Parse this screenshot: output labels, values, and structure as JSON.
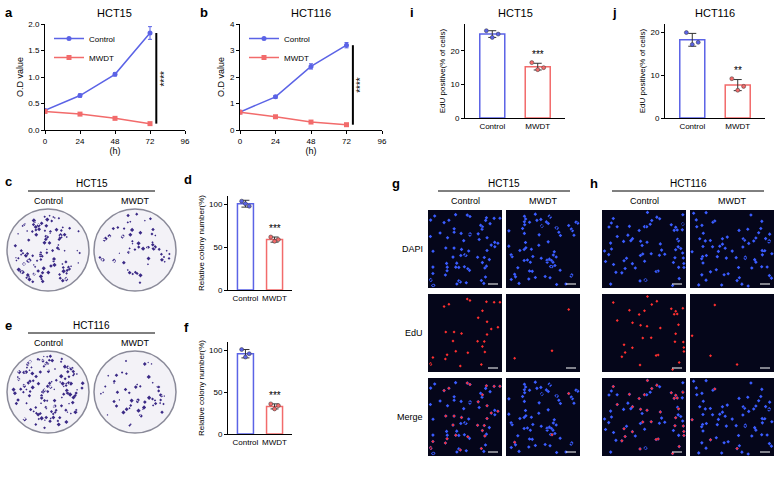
{
  "chart_data": [
    {
      "panel": "a",
      "type": "line",
      "title": "HCT15",
      "x_label": "(h)",
      "y_label": "O.D value",
      "x": [
        0,
        24,
        48,
        72
      ],
      "xlim": [
        0,
        96
      ],
      "xticks": [
        0,
        24,
        48,
        72,
        96
      ],
      "ylim": [
        0,
        2
      ],
      "yticks": [
        {
          "value": 0,
          "label": "0.0"
        },
        {
          "value": 0.5,
          "label": "0.5"
        },
        {
          "value": 1,
          "label": "1.0"
        },
        {
          "value": 1.5,
          "label": "1.5"
        },
        {
          "value": 2,
          "label": "2.0"
        }
      ],
      "legend": "upper left",
      "annotations": [
        "****"
      ],
      "series": [
        {
          "name": "Control",
          "color": "#5b63e6",
          "marker": "circle",
          "values": [
            0.37,
            0.65,
            1.05,
            1.83
          ],
          "error": [
            0.02,
            0.03,
            0.03,
            0.12
          ]
        },
        {
          "name": "MWDT",
          "color": "#f26b6b",
          "marker": "square",
          "values": [
            0.35,
            0.3,
            0.22,
            0.12
          ],
          "error": [
            0.02,
            0.02,
            0.02,
            0.02
          ]
        }
      ]
    },
    {
      "panel": "b",
      "type": "line",
      "title": "HCT116",
      "x_label": "(h)",
      "y_label": "O.D value",
      "x": [
        0,
        24,
        48,
        72
      ],
      "xlim": [
        0,
        96
      ],
      "xticks": [
        0,
        24,
        48,
        72,
        96
      ],
      "ylim": [
        0,
        4
      ],
      "yticks": [
        0,
        1,
        2,
        3,
        4
      ],
      "legend": "upper left",
      "annotations": [
        "****"
      ],
      "series": [
        {
          "name": "Control",
          "color": "#5b63e6",
          "marker": "circle",
          "values": [
            0.68,
            1.25,
            2.4,
            3.2
          ],
          "error": [
            0.03,
            0.05,
            0.1,
            0.1
          ]
        },
        {
          "name": "MWDT",
          "color": "#f26b6b",
          "marker": "square",
          "values": [
            0.67,
            0.5,
            0.3,
            0.2
          ],
          "error": [
            0.02,
            0.03,
            0.03,
            0.03
          ]
        }
      ]
    },
    {
      "panel": "i",
      "type": "bar",
      "title": "HCT15",
      "y_label": "EdU positive(% of cells)",
      "categories": [
        "Control",
        "MWDT"
      ],
      "values": [
        25,
        15.3
      ],
      "error": [
        1.0,
        1.0
      ],
      "points": [
        [
          26,
          24,
          25
        ],
        [
          16.5,
          14.4,
          15
        ]
      ],
      "colors": [
        "#5b63e6",
        "#f26b6b"
      ],
      "ylim": [
        0,
        28
      ],
      "yticks": [
        0,
        10,
        20
      ],
      "annotations": [
        "***"
      ]
    },
    {
      "panel": "j",
      "type": "bar",
      "title": "HCT116",
      "y_label": "EdU positive(% of cells)",
      "categories": [
        "Control",
        "MWDT"
      ],
      "values": [
        18.3,
        7.7
      ],
      "error": [
        1.5,
        1.3
      ],
      "points": [
        [
          20,
          17.2,
          17.7
        ],
        [
          9.2,
          6.5,
          7.4
        ]
      ],
      "colors": [
        "#5b63e6",
        "#f26b6b"
      ],
      "ylim": [
        0,
        22
      ],
      "yticks": [
        0,
        10,
        20
      ],
      "annotations": [
        "**"
      ]
    },
    {
      "panel": "c",
      "type": "image",
      "title": "HCT15",
      "columns": [
        "Control",
        "MWDT"
      ]
    },
    {
      "panel": "d",
      "type": "bar",
      "y_label": "Relative colony number(%)",
      "categories": [
        "Control",
        "MWDT"
      ],
      "values": [
        101,
        59
      ],
      "error": [
        4,
        3
      ],
      "points": [
        [
          104,
          101,
          98
        ],
        [
          62,
          57,
          59
        ]
      ],
      "colors": [
        "#5b63e6",
        "#f26b6b"
      ],
      "ylim": [
        0,
        110
      ],
      "yticks": [
        0,
        50,
        100
      ],
      "annotations": [
        "***"
      ]
    },
    {
      "panel": "e",
      "type": "image",
      "title": "HCT116",
      "columns": [
        "Control",
        "MWDT"
      ]
    },
    {
      "panel": "f",
      "type": "bar",
      "y_label": "Relative colony number(%)",
      "categories": [
        "Control",
        "MWDT"
      ],
      "values": [
        96,
        33
      ],
      "error": [
        5,
        3
      ],
      "points": [
        [
          101,
          92,
          96
        ],
        [
          36,
          30,
          34
        ]
      ],
      "colors": [
        "#5b63e6",
        "#f26b6b"
      ],
      "ylim": [
        0,
        110
      ],
      "yticks": [
        0,
        50,
        100
      ],
      "annotations": [
        "***"
      ]
    },
    {
      "panel": "g",
      "type": "image",
      "title": "HCT15",
      "columns": [
        "Control",
        "MWDT"
      ],
      "rows": [
        "DAPI",
        "EdU",
        "Merge"
      ]
    },
    {
      "panel": "h",
      "type": "image",
      "title": "HCT116",
      "columns": [
        "Control",
        "MWDT"
      ]
    }
  ]
}
